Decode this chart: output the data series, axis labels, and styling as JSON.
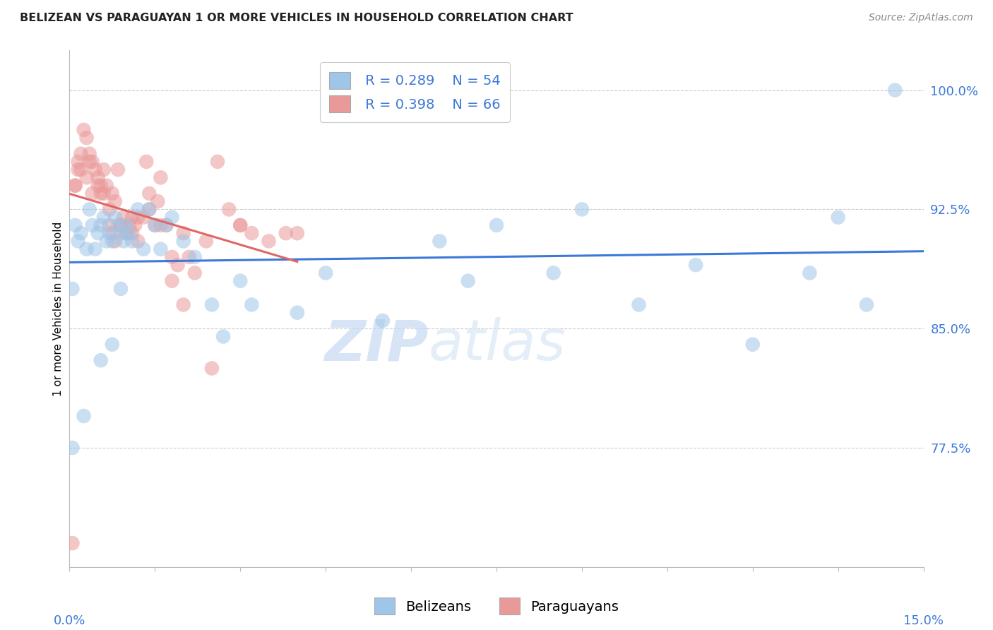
{
  "title": "BELIZEAN VS PARAGUAYAN 1 OR MORE VEHICLES IN HOUSEHOLD CORRELATION CHART",
  "source_text": "Source: ZipAtlas.com",
  "ylabel": "1 or more Vehicles in Household",
  "xlim": [
    0.0,
    15.0
  ],
  "ylim": [
    70.0,
    102.5
  ],
  "yticks": [
    77.5,
    85.0,
    92.5,
    100.0
  ],
  "ytick_labels": [
    "77.5%",
    "85.0%",
    "92.5%",
    "100.0%"
  ],
  "blue_color": "#9fc5e8",
  "pink_color": "#ea9999",
  "blue_line_color": "#3c78d8",
  "pink_line_color": "#e06666",
  "legend_R_blue": "R = 0.289",
  "legend_N_blue": "N = 54",
  "legend_R_pink": "R = 0.398",
  "legend_N_pink": "N = 66",
  "watermark_zip": "ZIP",
  "watermark_atlas": "atlas",
  "blue_x": [
    0.05,
    0.1,
    0.15,
    0.2,
    0.3,
    0.35,
    0.4,
    0.45,
    0.5,
    0.55,
    0.6,
    0.65,
    0.7,
    0.75,
    0.8,
    0.85,
    0.9,
    0.95,
    1.0,
    1.05,
    1.1,
    1.2,
    1.3,
    1.4,
    1.5,
    1.6,
    1.7,
    1.8,
    2.0,
    2.2,
    2.5,
    2.7,
    3.0,
    3.2,
    4.0,
    4.5,
    5.5,
    6.5,
    7.0,
    7.5,
    8.5,
    9.0,
    10.0,
    11.0,
    12.0,
    13.0,
    13.5,
    14.0,
    14.5,
    0.05,
    0.25,
    0.55,
    0.75,
    0.9
  ],
  "blue_y": [
    87.5,
    91.5,
    90.5,
    91.0,
    90.0,
    92.5,
    91.5,
    90.0,
    91.0,
    91.5,
    92.0,
    90.5,
    91.0,
    90.5,
    92.0,
    91.5,
    91.0,
    90.5,
    91.5,
    91.0,
    90.5,
    92.5,
    90.0,
    92.5,
    91.5,
    90.0,
    91.5,
    92.0,
    90.5,
    89.5,
    86.5,
    84.5,
    88.0,
    86.5,
    86.0,
    88.5,
    85.5,
    90.5,
    88.0,
    91.5,
    88.5,
    92.5,
    86.5,
    89.0,
    84.0,
    88.5,
    92.0,
    86.5,
    100.0,
    77.5,
    79.5,
    83.0,
    84.0,
    87.5
  ],
  "pink_x": [
    0.05,
    0.1,
    0.15,
    0.2,
    0.25,
    0.3,
    0.35,
    0.4,
    0.45,
    0.5,
    0.55,
    0.6,
    0.65,
    0.7,
    0.75,
    0.8,
    0.85,
    0.9,
    0.95,
    1.0,
    1.05,
    1.1,
    1.15,
    1.2,
    1.3,
    1.35,
    1.4,
    1.5,
    1.55,
    1.6,
    1.7,
    1.8,
    1.9,
    2.0,
    2.1,
    2.2,
    2.4,
    2.6,
    2.8,
    3.0,
    3.2,
    3.5,
    4.0,
    0.1,
    0.2,
    0.3,
    0.4,
    0.5,
    0.6,
    0.7,
    0.8,
    0.9,
    1.0,
    1.1,
    1.2,
    1.4,
    1.6,
    1.8,
    2.0,
    2.5,
    3.0,
    3.8,
    0.15,
    0.35,
    0.55,
    0.75
  ],
  "pink_y": [
    71.5,
    94.0,
    95.5,
    96.0,
    97.5,
    97.0,
    96.0,
    95.5,
    95.0,
    94.5,
    94.0,
    95.0,
    94.0,
    92.5,
    93.5,
    93.0,
    95.0,
    91.5,
    92.0,
    91.0,
    91.5,
    92.0,
    91.5,
    90.5,
    92.0,
    95.5,
    93.5,
    91.5,
    93.0,
    94.5,
    91.5,
    89.5,
    89.0,
    91.0,
    89.5,
    88.5,
    90.5,
    95.5,
    92.5,
    91.5,
    91.0,
    90.5,
    91.0,
    94.0,
    95.0,
    94.5,
    93.5,
    94.0,
    93.5,
    91.5,
    90.5,
    91.5,
    91.0,
    91.0,
    92.0,
    92.5,
    91.5,
    88.0,
    86.5,
    82.5,
    91.5,
    91.0,
    95.0,
    95.5,
    93.5,
    91.0
  ]
}
